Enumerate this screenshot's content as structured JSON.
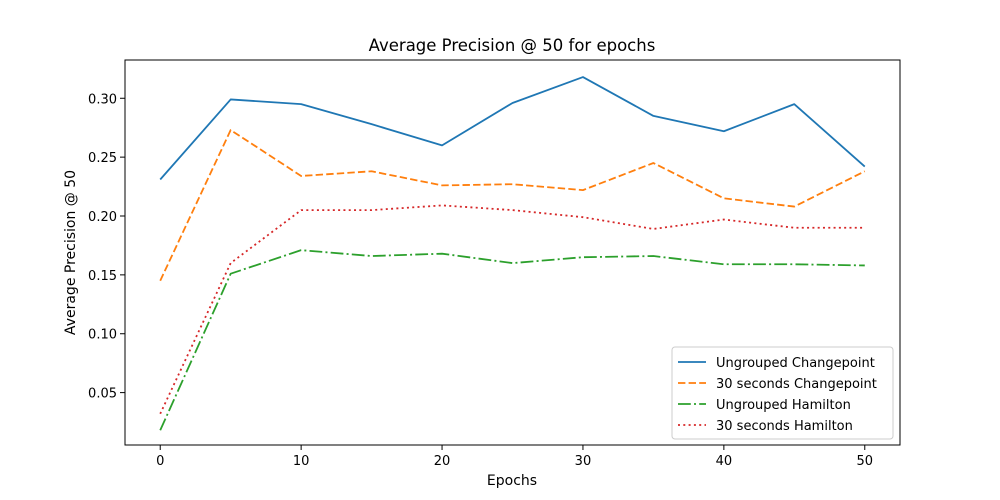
{
  "chart_data": {
    "type": "line",
    "title": "Average Precision @ 50 for epochs",
    "xlabel": "Epochs",
    "ylabel": "Average Precision @ 50",
    "x": [
      0,
      5,
      10,
      15,
      20,
      25,
      30,
      35,
      40,
      45,
      50
    ],
    "xlim": [
      -2.5,
      52.5
    ],
    "ylim": [
      0.0055,
      0.3325
    ],
    "xticks": [
      0,
      10,
      20,
      30,
      40,
      50
    ],
    "xtick_labels": [
      "0",
      "10",
      "20",
      "30",
      "40",
      "50"
    ],
    "yticks": [
      0.05,
      0.1,
      0.15,
      0.2,
      0.25,
      0.3
    ],
    "ytick_labels": [
      "0.05",
      "0.10",
      "0.15",
      "0.20",
      "0.25",
      "0.30"
    ],
    "grid": false,
    "legend_position": "lower-right",
    "series": [
      {
        "name": "Ungrouped Changepoint",
        "color": "#1f77b4",
        "linestyle": "solid",
        "values": [
          0.231,
          0.299,
          0.295,
          0.278,
          0.26,
          0.296,
          0.318,
          0.285,
          0.272,
          0.295,
          0.242
        ]
      },
      {
        "name": "30 seconds Changepoint",
        "color": "#ff7f0e",
        "linestyle": "dashed",
        "values": [
          0.145,
          0.273,
          0.234,
          0.238,
          0.226,
          0.227,
          0.222,
          0.245,
          0.215,
          0.208,
          0.238
        ]
      },
      {
        "name": "Ungrouped Hamilton",
        "color": "#2ca02c",
        "linestyle": "dashdot",
        "values": [
          0.018,
          0.151,
          0.171,
          0.166,
          0.168,
          0.16,
          0.165,
          0.166,
          0.159,
          0.159,
          0.158
        ]
      },
      {
        "name": "30 seconds Hamilton",
        "color": "#d62728",
        "linestyle": "dotted",
        "values": [
          0.032,
          0.16,
          0.205,
          0.205,
          0.209,
          0.205,
          0.199,
          0.189,
          0.197,
          0.19,
          0.19
        ]
      }
    ]
  }
}
